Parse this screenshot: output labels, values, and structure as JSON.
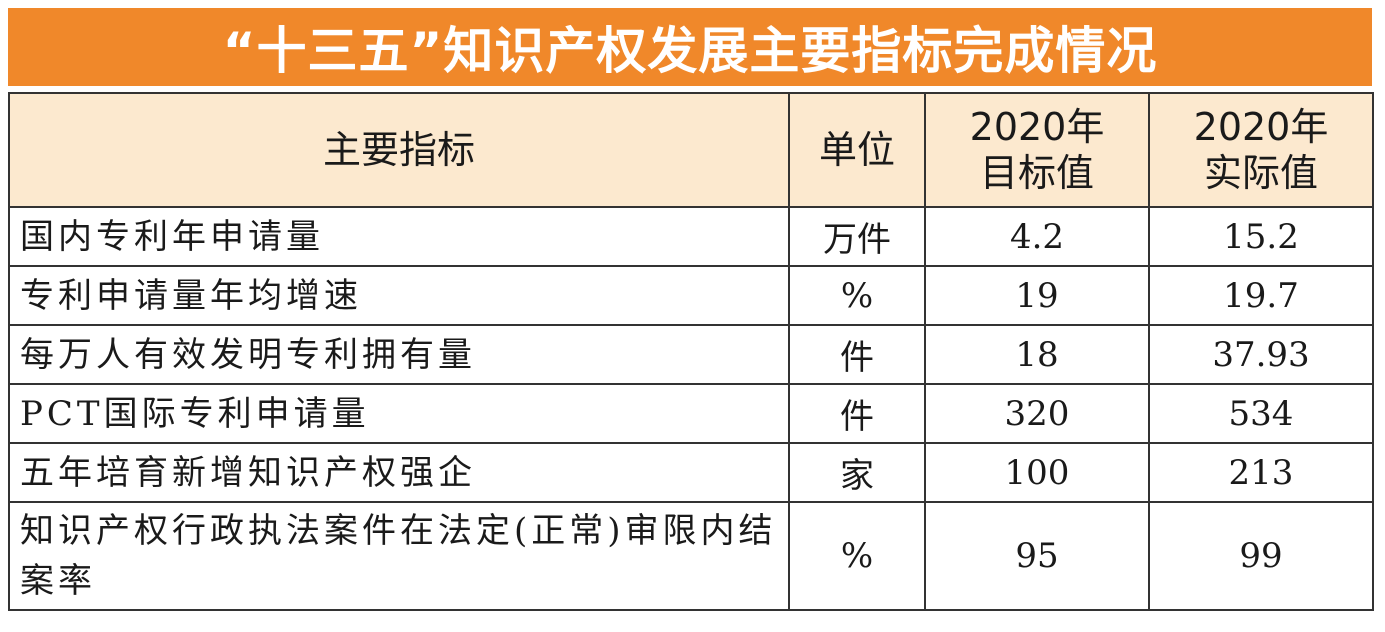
{
  "title": "“十三五”知识产权发展主要指标完成情况",
  "headers": {
    "indicator": "主要指标",
    "unit": "单位",
    "target_line1": "2020年",
    "target_line2": "目标值",
    "actual_line1": "2020年",
    "actual_line2": "实际值"
  },
  "rows": [
    {
      "indicator": "国内专利年申请量",
      "unit": "万件",
      "target": "4.2",
      "actual": "15.2"
    },
    {
      "indicator": "专利申请量年均增速",
      "unit": "%",
      "target": "19",
      "actual": "19.7"
    },
    {
      "indicator": "每万人有效发明专利拥有量",
      "unit": "件",
      "target": "18",
      "actual": "37.93"
    },
    {
      "indicator": "PCT国际专利申请量",
      "unit": "件",
      "target": "320",
      "actual": "534"
    },
    {
      "indicator": "五年培育新增知识产权强企",
      "unit": "家",
      "target": "100",
      "actual": "213"
    },
    {
      "indicator": "知识产权行政执法案件在法定(正常)审限内结案率",
      "unit": "%",
      "target": "95",
      "actual": "99"
    }
  ],
  "colors": {
    "title_background": "#f0882a",
    "header_background": "#fce9cf",
    "border": "#333333"
  }
}
